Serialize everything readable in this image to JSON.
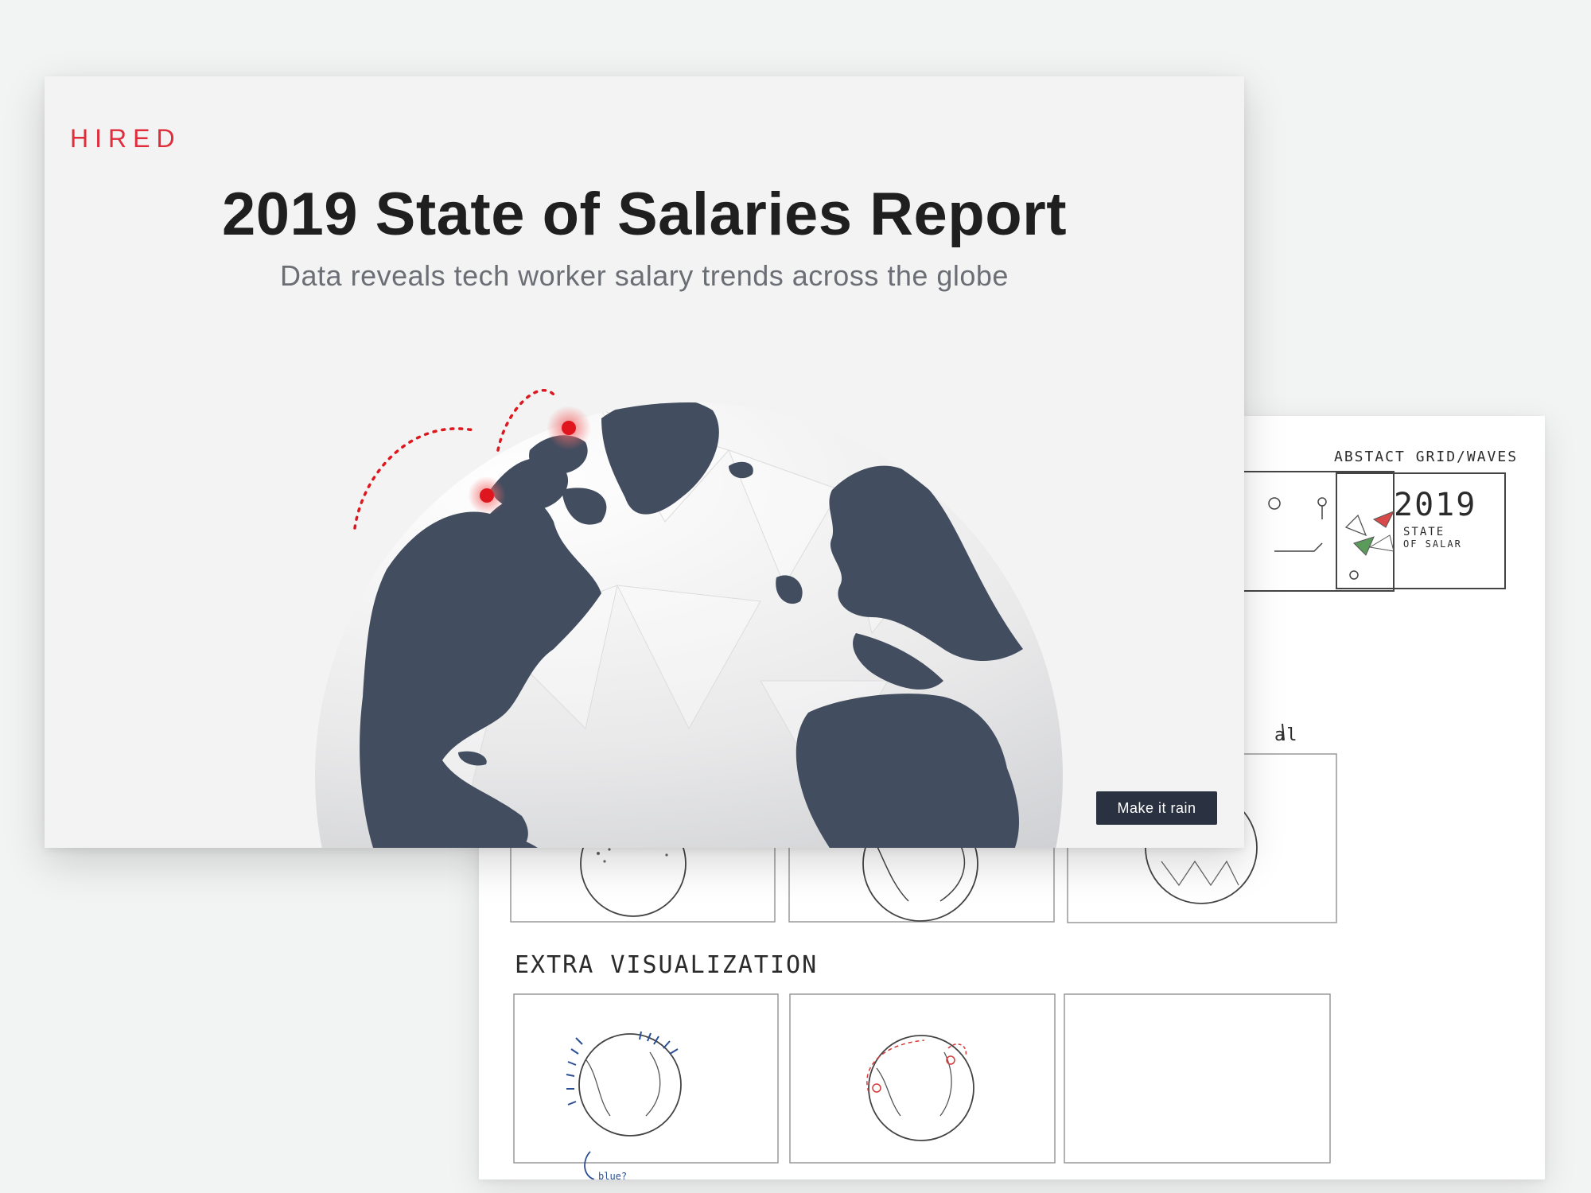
{
  "brand": {
    "logo": "HIRED",
    "accent_color": "#e02d3c"
  },
  "hero": {
    "title": "2019 State of Salaries Report",
    "subtitle": "Data reveals tech worker salary trends across the globe",
    "cta_label": "Make it rain",
    "globe_color": "#424d5f"
  },
  "sketch_sheet": {
    "section_top_right_label": "ABSTACT GRID/WAVES",
    "thumb_year": "2019",
    "thumb_text_1": "STATE",
    "thumb_text_2": "OF SALAR",
    "partial_section_label": "al",
    "extra_label": "EXTRA VISUALIZATION",
    "bottom_scribble": "blue?"
  }
}
